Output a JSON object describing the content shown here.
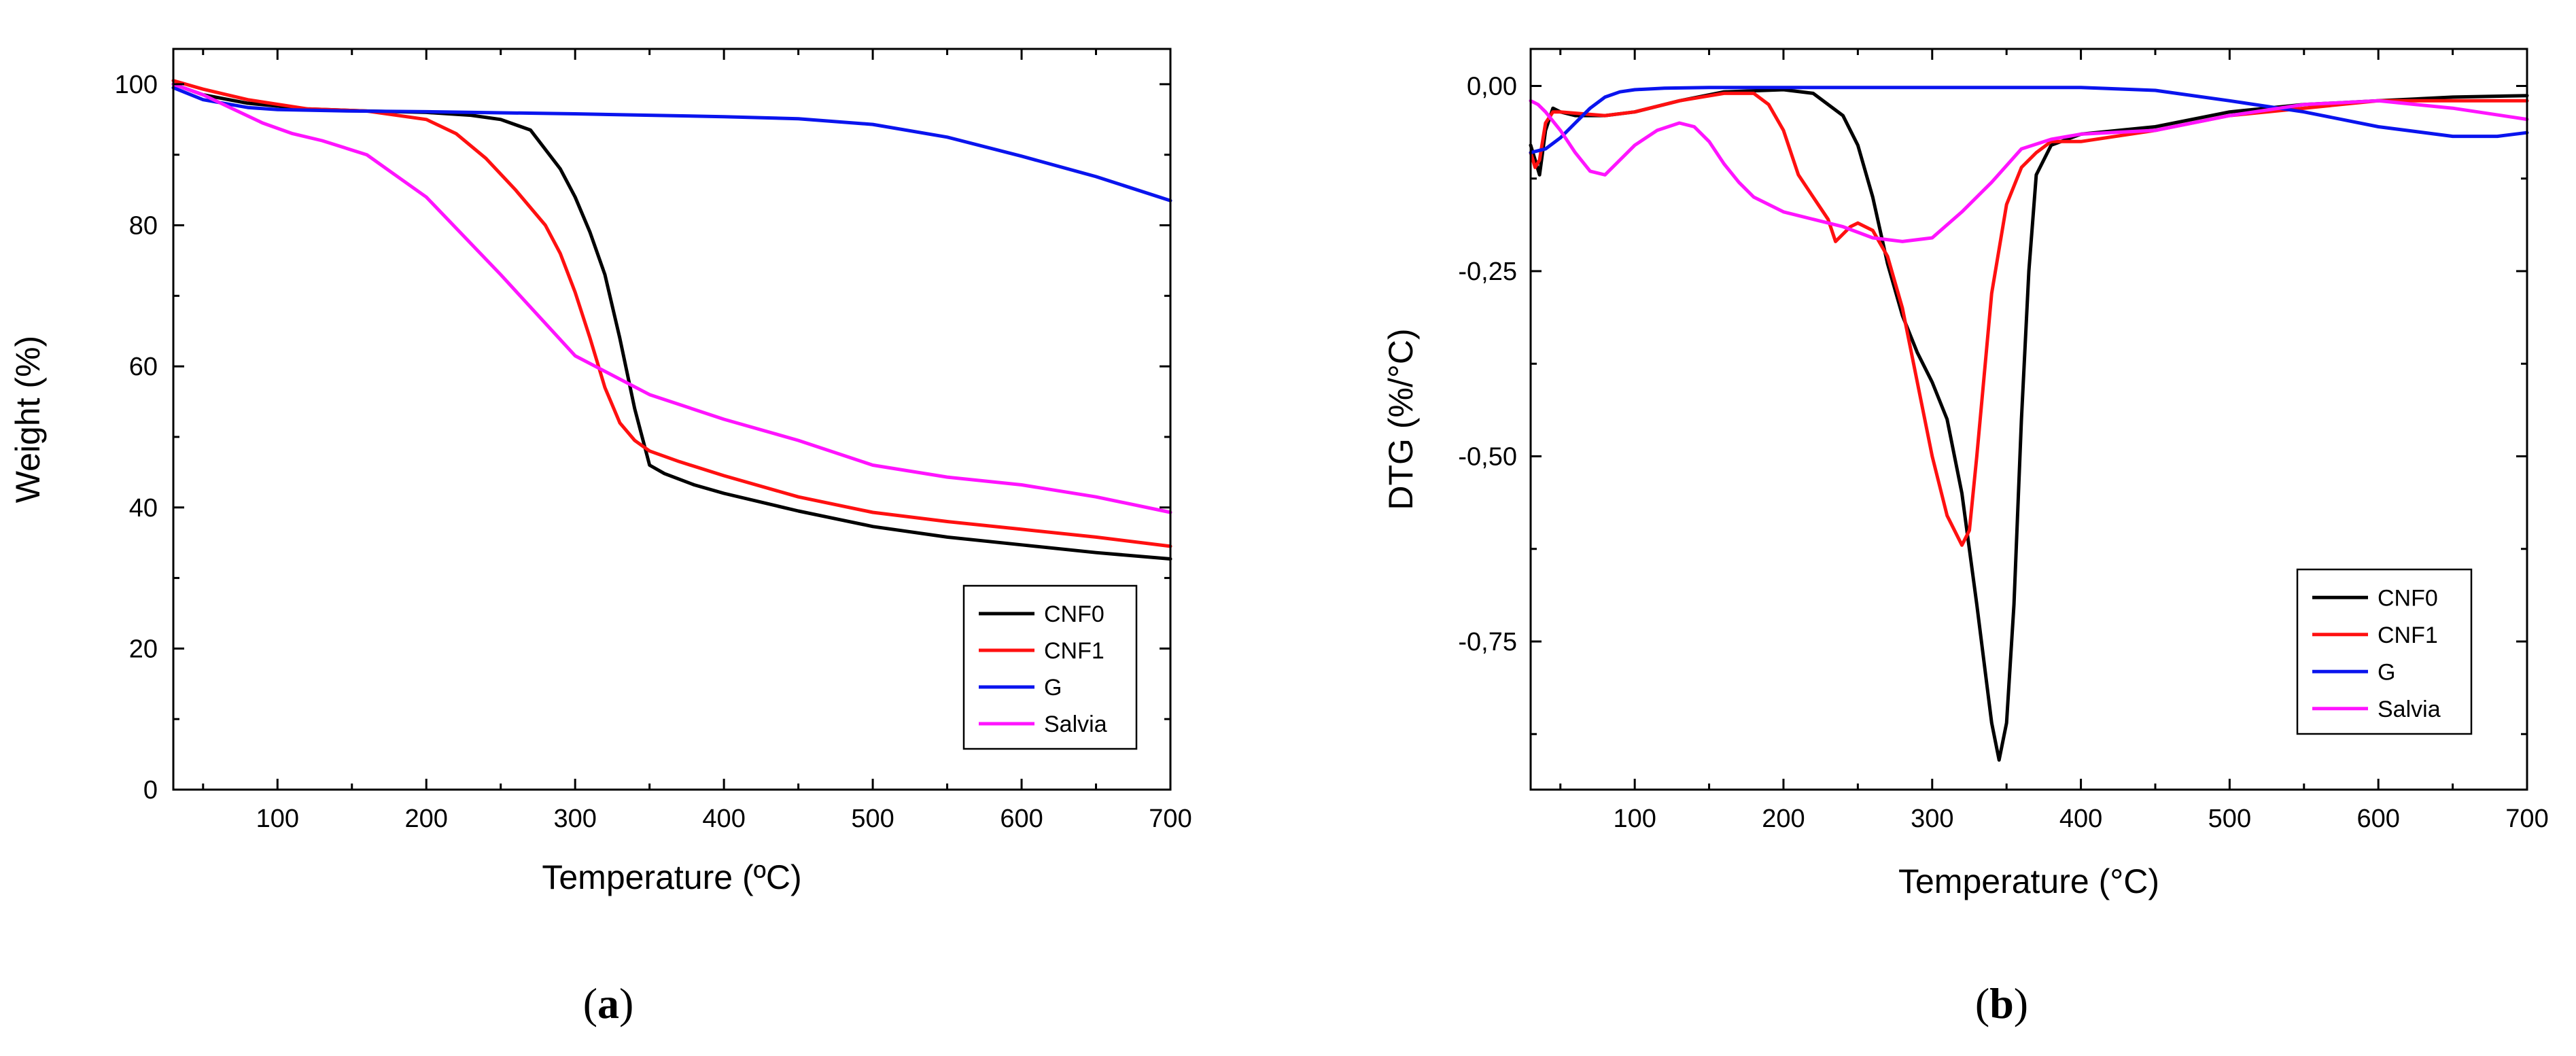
{
  "colors": {
    "CNF0": "#000000",
    "CNF1": "#ff1010",
    "G": "#0a14ee",
    "Salvia": "#ff14ff"
  },
  "chart_data": [
    {
      "id": "a",
      "type": "line",
      "caption": {
        "open": "(",
        "letter": "a",
        "close": ")"
      },
      "xlabel": "Temperature (ºC)",
      "ylabel": "Weight (%)",
      "xlim": [
        30,
        700
      ],
      "ylim": [
        0,
        105
      ],
      "xticks": [
        {
          "value": 100,
          "label": "100"
        },
        {
          "value": 200,
          "label": "200"
        },
        {
          "value": 300,
          "label": "300"
        },
        {
          "value": 400,
          "label": "400"
        },
        {
          "value": 500,
          "label": "500"
        },
        {
          "value": 600,
          "label": "600"
        },
        {
          "value": 700,
          "label": "700"
        }
      ],
      "yticks": [
        {
          "value": 0,
          "label": "0"
        },
        {
          "value": 20,
          "label": "20"
        },
        {
          "value": 40,
          "label": "40"
        },
        {
          "value": 60,
          "label": "60"
        },
        {
          "value": 80,
          "label": "80"
        },
        {
          "value": 100,
          "label": "100"
        }
      ],
      "legend_position": "bottom-right",
      "series": [
        {
          "name": "CNF0",
          "x": [
            30,
            50,
            80,
            120,
            160,
            200,
            230,
            250,
            270,
            290,
            300,
            310,
            320,
            330,
            340,
            350,
            360,
            370,
            380,
            400,
            450,
            500,
            550,
            600,
            650,
            700
          ],
          "y": [
            100,
            98.5,
            97.3,
            96.5,
            96.2,
            96,
            95.6,
            95,
            93.5,
            88,
            84,
            79,
            73,
            64,
            54,
            46,
            44.8,
            44,
            43.2,
            42,
            39.5,
            37.3,
            35.8,
            34.7,
            33.6,
            32.7
          ]
        },
        {
          "name": "CNF1",
          "x": [
            30,
            50,
            80,
            120,
            160,
            200,
            220,
            240,
            260,
            280,
            290,
            300,
            310,
            320,
            330,
            340,
            350,
            370,
            400,
            450,
            500,
            550,
            600,
            650,
            700
          ],
          "y": [
            100.5,
            99.3,
            97.8,
            96.5,
            96.2,
            95,
            93,
            89.5,
            85,
            80,
            76,
            70.5,
            64,
            57,
            52,
            49.5,
            48,
            46.5,
            44.5,
            41.5,
            39.3,
            38,
            36.9,
            35.8,
            34.5
          ]
        },
        {
          "name": "G",
          "x": [
            30,
            50,
            80,
            100,
            150,
            200,
            300,
            400,
            450,
            500,
            550,
            600,
            650,
            700
          ],
          "y": [
            99.5,
            97.8,
            96.7,
            96.4,
            96.2,
            96.1,
            95.8,
            95.4,
            95.1,
            94.3,
            92.5,
            89.8,
            86.9,
            83.5
          ]
        },
        {
          "name": "Salvia",
          "x": [
            30,
            50,
            70,
            90,
            110,
            130,
            160,
            180,
            200,
            250,
            300,
            350,
            400,
            450,
            500,
            550,
            600,
            650,
            700
          ],
          "y": [
            100,
            98.5,
            96.5,
            94.5,
            93,
            92,
            90,
            87,
            84,
            73,
            61.5,
            56,
            52.5,
            49.5,
            46,
            44.3,
            43.2,
            41.5,
            39.3
          ]
        }
      ]
    },
    {
      "id": "b",
      "type": "line",
      "caption": {
        "open": "(",
        "letter": "b",
        "close": ")"
      },
      "xlabel": "Temperature (°C)",
      "ylabel": "DTG (%/°C)",
      "xlim": [
        30,
        700
      ],
      "ylim": [
        -0.95,
        0.05
      ],
      "xticks": [
        {
          "value": 100,
          "label": "100"
        },
        {
          "value": 200,
          "label": "200"
        },
        {
          "value": 300,
          "label": "300"
        },
        {
          "value": 400,
          "label": "400"
        },
        {
          "value": 500,
          "label": "500"
        },
        {
          "value": 600,
          "label": "600"
        },
        {
          "value": 700,
          "label": "700"
        }
      ],
      "yticks": [
        {
          "value": 0,
          "label": "0,00"
        },
        {
          "value": -0.25,
          "label": "-0,25"
        },
        {
          "value": -0.5,
          "label": "-0,50"
        },
        {
          "value": -0.75,
          "label": "-0,75"
        }
      ],
      "legend_position": "bottom-right",
      "series": [
        {
          "name": "CNF0",
          "x": [
            30,
            33,
            36,
            40,
            45,
            50,
            60,
            80,
            100,
            130,
            160,
            200,
            220,
            240,
            250,
            260,
            270,
            280,
            290,
            300,
            310,
            320,
            330,
            340,
            345,
            350,
            355,
            360,
            365,
            370,
            380,
            400,
            450,
            500,
            550,
            600,
            650,
            700
          ],
          "y": [
            -0.08,
            -0.1,
            -0.12,
            -0.06,
            -0.03,
            -0.035,
            -0.04,
            -0.04,
            -0.035,
            -0.02,
            -0.008,
            -0.005,
            -0.01,
            -0.04,
            -0.08,
            -0.15,
            -0.24,
            -0.31,
            -0.36,
            -0.4,
            -0.45,
            -0.55,
            -0.7,
            -0.86,
            -0.91,
            -0.86,
            -0.7,
            -0.45,
            -0.25,
            -0.12,
            -0.08,
            -0.065,
            -0.055,
            -0.035,
            -0.025,
            -0.02,
            -0.015,
            -0.013
          ]
        },
        {
          "name": "CNF1",
          "x": [
            30,
            33,
            36,
            40,
            45,
            50,
            80,
            100,
            130,
            160,
            180,
            190,
            200,
            210,
            220,
            230,
            235,
            240,
            245,
            250,
            260,
            270,
            280,
            290,
            300,
            310,
            320,
            325,
            330,
            340,
            350,
            360,
            370,
            380,
            400,
            450,
            500,
            550,
            600,
            650,
            700
          ],
          "y": [
            -0.09,
            -0.11,
            -0.1,
            -0.05,
            -0.035,
            -0.035,
            -0.04,
            -0.035,
            -0.02,
            -0.01,
            -0.01,
            -0.025,
            -0.06,
            -0.12,
            -0.15,
            -0.18,
            -0.21,
            -0.2,
            -0.19,
            -0.185,
            -0.195,
            -0.23,
            -0.3,
            -0.4,
            -0.5,
            -0.58,
            -0.62,
            -0.6,
            -0.5,
            -0.28,
            -0.16,
            -0.11,
            -0.09,
            -0.075,
            -0.075,
            -0.06,
            -0.04,
            -0.03,
            -0.02,
            -0.02,
            -0.02
          ]
        },
        {
          "name": "G",
          "x": [
            30,
            40,
            50,
            60,
            70,
            80,
            90,
            100,
            120,
            150,
            200,
            300,
            400,
            450,
            500,
            550,
            600,
            650,
            680,
            700
          ],
          "y": [
            -0.09,
            -0.085,
            -0.07,
            -0.05,
            -0.03,
            -0.015,
            -0.008,
            -0.005,
            -0.003,
            -0.002,
            -0.002,
            -0.002,
            -0.002,
            -0.006,
            -0.02,
            -0.035,
            -0.055,
            -0.068,
            -0.068,
            -0.063
          ]
        },
        {
          "name": "Salvia",
          "x": [
            30,
            35,
            40,
            50,
            60,
            70,
            80,
            90,
            100,
            115,
            130,
            140,
            150,
            160,
            170,
            180,
            200,
            220,
            240,
            260,
            280,
            300,
            320,
            340,
            360,
            380,
            400,
            450,
            500,
            550,
            600,
            650,
            700
          ],
          "y": [
            -0.02,
            -0.025,
            -0.035,
            -0.06,
            -0.09,
            -0.115,
            -0.12,
            -0.1,
            -0.08,
            -0.06,
            -0.05,
            -0.055,
            -0.075,
            -0.105,
            -0.13,
            -0.15,
            -0.17,
            -0.18,
            -0.19,
            -0.205,
            -0.21,
            -0.205,
            -0.17,
            -0.13,
            -0.085,
            -0.072,
            -0.065,
            -0.06,
            -0.04,
            -0.025,
            -0.02,
            -0.03,
            -0.045
          ]
        }
      ]
    }
  ]
}
